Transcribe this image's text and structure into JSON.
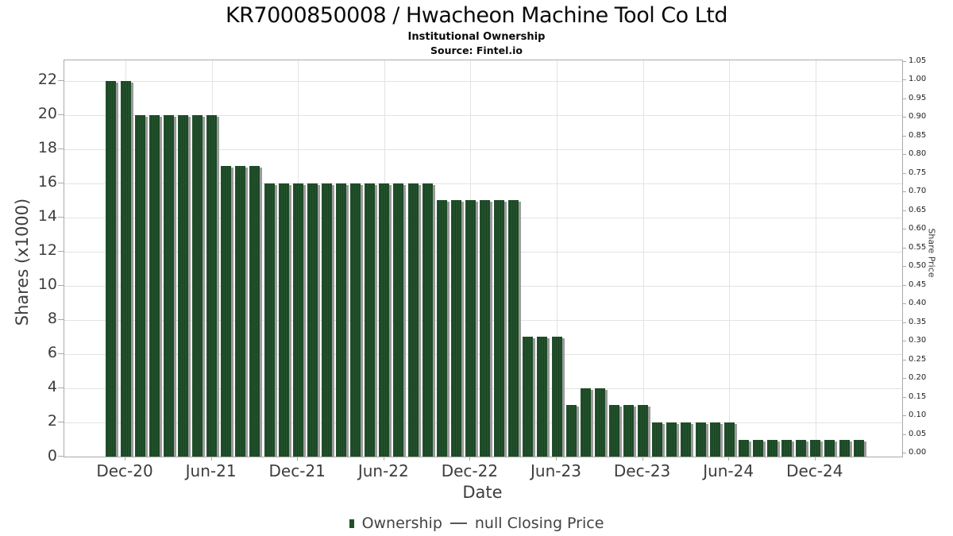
{
  "title": "KR7000850008 / Hwacheon Machine Tool Co Ltd",
  "subtitle": "Institutional Ownership",
  "source": "Source: Fintel.io",
  "colors": {
    "bar": "#21502b",
    "bar_stripe": "#1a4523",
    "bar_shadow": "#9b9b9b",
    "grid": "#e3e3e3",
    "frame": "#a9a9a9",
    "tick_text": "#3d3d3d"
  },
  "legend": {
    "ownership_label": "Ownership",
    "price_label": "null Closing Price"
  },
  "chart_data": {
    "type": "bar",
    "title": "KR7000850008 / Hwacheon Machine Tool Co Ltd",
    "subtitle": "Institutional Ownership",
    "source": "Source: Fintel.io",
    "xlabel": "Date",
    "ylabel": "Shares (x1000)",
    "ylabel_right": "Share Price",
    "grid": true,
    "legend_position": "bottom-center",
    "categories": [
      "Nov-20",
      "Dec-20",
      "Jan-21",
      "Feb-21",
      "Mar-21",
      "Apr-21",
      "May-21",
      "Jun-21",
      "Jul-21",
      "Aug-21",
      "Sep-21",
      "Oct-21",
      "Nov-21",
      "Dec-21",
      "Jan-22",
      "Feb-22",
      "Mar-22",
      "Apr-22",
      "May-22",
      "Jun-22",
      "Jul-22",
      "Aug-22",
      "Sep-22",
      "Oct-22",
      "Nov-22",
      "Dec-22",
      "Jan-23",
      "Feb-23",
      "Mar-23",
      "Apr-23",
      "May-23",
      "Jun-23",
      "Jul-23",
      "Aug-23",
      "Sep-23",
      "Oct-23",
      "Nov-23",
      "Dec-23",
      "Jan-24",
      "Feb-24",
      "Mar-24",
      "Apr-24",
      "May-24",
      "Jun-24",
      "Jul-24",
      "Aug-24",
      "Sep-24",
      "Oct-24",
      "Nov-24",
      "Dec-24",
      "Jan-25",
      "Feb-25",
      "Mar-25"
    ],
    "values": [
      22,
      22,
      20,
      20,
      20,
      20,
      20,
      20,
      17,
      17,
      17,
      16,
      16,
      16,
      16,
      16,
      16,
      16,
      16,
      16,
      16,
      16,
      16,
      15,
      15,
      15,
      15,
      15,
      15,
      7,
      7,
      7,
      3,
      4,
      4,
      3,
      3,
      3,
      2,
      2,
      2,
      2,
      2,
      2,
      1,
      1,
      1,
      1,
      1,
      1,
      1,
      1,
      1
    ],
    "series": [
      {
        "name": "Ownership",
        "type": "bar",
        "values": [
          22,
          22,
          20,
          20,
          20,
          20,
          20,
          20,
          17,
          17,
          17,
          16,
          16,
          16,
          16,
          16,
          16,
          16,
          16,
          16,
          16,
          16,
          16,
          15,
          15,
          15,
          15,
          15,
          15,
          7,
          7,
          7,
          3,
          4,
          4,
          3,
          3,
          3,
          2,
          2,
          2,
          2,
          2,
          2,
          1,
          1,
          1,
          1,
          1,
          1,
          1,
          1,
          1
        ]
      },
      {
        "name": "null Closing Price",
        "type": "line",
        "values": []
      }
    ],
    "x_tick_labels": [
      "Dec-20",
      "Jun-21",
      "Dec-21",
      "Jun-22",
      "Dec-22",
      "Jun-23",
      "Dec-23",
      "Jun-24",
      "Dec-24"
    ],
    "ylim_left": [
      0,
      23.2
    ],
    "yticks_left": [
      0,
      2,
      4,
      6,
      8,
      10,
      12,
      14,
      16,
      18,
      20,
      22
    ],
    "ylim_right": [
      0.0,
      1.05
    ],
    "yticks_right": [
      "0.00",
      "0.05",
      "0.10",
      "0.15",
      "0.20",
      "0.25",
      "0.30",
      "0.35",
      "0.40",
      "0.45",
      "0.50",
      "0.55",
      "0.60",
      "0.65",
      "0.70",
      "0.75",
      "0.80",
      "0.85",
      "0.90",
      "0.95",
      "1.00",
      "1.05"
    ]
  }
}
